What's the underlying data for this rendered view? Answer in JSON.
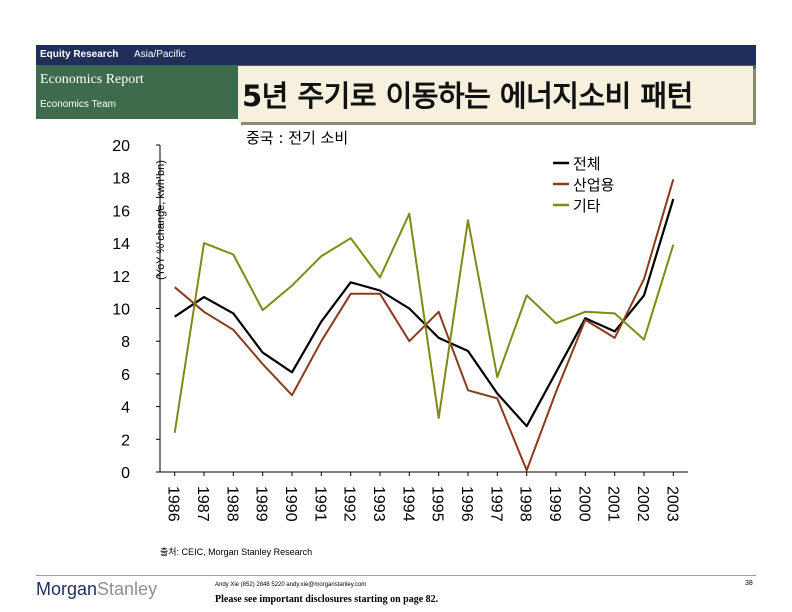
{
  "header": {
    "division": "Equity Research",
    "region": "Asia/Pacific",
    "report": "Economics Report",
    "team": "Economics Team"
  },
  "title": "5년 주기로 이동하는 에너지소비 패턴",
  "subtitle": "중국 : 전기 소비",
  "colors": {
    "header_bar": "#1f2f5a",
    "header_band": "#3d6b4b",
    "title_box": "#f6f1df"
  },
  "chart_data": {
    "type": "line",
    "ylabel": "(YoY % change, kwh bn)",
    "ylim": [
      0,
      20
    ],
    "yticks": [
      0,
      2,
      4,
      6,
      8,
      10,
      12,
      14,
      16,
      18,
      20
    ],
    "categories": [
      "1986",
      "1987",
      "1988",
      "1989",
      "1990",
      "1991",
      "1992",
      "1993",
      "1994",
      "1995",
      "1996",
      "1997",
      "1998",
      "1999",
      "2000",
      "2001",
      "2002",
      "2003"
    ],
    "series": [
      {
        "name": "전체",
        "color": "#000000",
        "values": [
          9.5,
          10.7,
          9.7,
          7.3,
          6.1,
          9.2,
          11.6,
          11.1,
          10.0,
          8.2,
          7.4,
          4.8,
          2.8,
          6.1,
          9.4,
          8.6,
          10.8,
          16.7
        ]
      },
      {
        "name": "산업용",
        "color": "#8b3a1e",
        "values": [
          11.3,
          9.8,
          8.7,
          6.6,
          4.7,
          8.0,
          10.9,
          10.9,
          8.0,
          9.8,
          5.0,
          4.5,
          0.1,
          4.9,
          9.3,
          8.2,
          11.8,
          17.9
        ]
      },
      {
        "name": "기타",
        "color": "#7f8a14",
        "values": [
          2.4,
          14.0,
          13.3,
          9.9,
          11.4,
          13.2,
          14.3,
          11.9,
          15.8,
          3.3,
          15.4,
          5.8,
          10.8,
          9.1,
          9.8,
          9.7,
          8.1,
          13.9
        ]
      }
    ]
  },
  "source": "출처: CEIC, Morgan Stanley Research",
  "footer": {
    "logo_a": "Morgan",
    "logo_b": "Stanley",
    "contact": "Andy Xie (852) 2848 5220 andy.xie@morganstanley.com",
    "disclosure": "Please see important disclosures starting on page 82.",
    "page": "38"
  }
}
